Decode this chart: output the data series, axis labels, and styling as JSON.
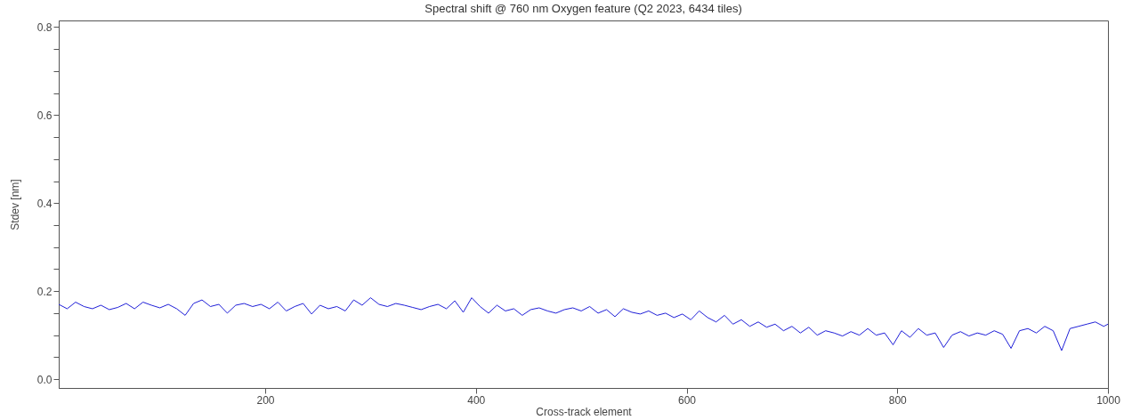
{
  "chart_data": {
    "type": "line",
    "title": "Spectral shift @ 760 nm Oxygen feature (Q2 2023, 6434 tiles)",
    "xlabel": "Cross-track element",
    "ylabel": "Stdev [nm]",
    "x": [
      4,
      12,
      20,
      28,
      36,
      44,
      52,
      60,
      68,
      76,
      84,
      92,
      100,
      108,
      116,
      124,
      132,
      140,
      148,
      156,
      164,
      172,
      180,
      188,
      196,
      204,
      212,
      220,
      228,
      236,
      244,
      252,
      260,
      268,
      276,
      284,
      292,
      300,
      308,
      316,
      324,
      332,
      340,
      348,
      356,
      364,
      372,
      380,
      388,
      396,
      404,
      412,
      420,
      428,
      436,
      444,
      452,
      460,
      468,
      476,
      484,
      492,
      500,
      508,
      516,
      524,
      532,
      540,
      548,
      556,
      564,
      572,
      580,
      588,
      596,
      604,
      612,
      620,
      628,
      636,
      644,
      652,
      660,
      668,
      676,
      684,
      692,
      700,
      708,
      716,
      724,
      732,
      740,
      748,
      756,
      764,
      772,
      780,
      788,
      796,
      804,
      812,
      820,
      828,
      836,
      844,
      852,
      860,
      868,
      876,
      884,
      892,
      900,
      908,
      916,
      924,
      932,
      940,
      948,
      956,
      964,
      972,
      980,
      988,
      996,
      1000
    ],
    "series": [
      {
        "color": "#1f1fd8",
        "values": [
          0.17,
          0.16,
          0.175,
          0.165,
          0.16,
          0.168,
          0.158,
          0.163,
          0.172,
          0.16,
          0.175,
          0.168,
          0.162,
          0.17,
          0.16,
          0.145,
          0.172,
          0.18,
          0.165,
          0.17,
          0.15,
          0.168,
          0.172,
          0.165,
          0.17,
          0.16,
          0.175,
          0.155,
          0.165,
          0.172,
          0.148,
          0.168,
          0.16,
          0.165,
          0.155,
          0.18,
          0.168,
          0.185,
          0.17,
          0.165,
          0.172,
          0.168,
          0.163,
          0.158,
          0.165,
          0.17,
          0.16,
          0.178,
          0.152,
          0.185,
          0.165,
          0.15,
          0.168,
          0.155,
          0.16,
          0.145,
          0.158,
          0.162,
          0.155,
          0.15,
          0.158,
          0.162,
          0.155,
          0.165,
          0.15,
          0.158,
          0.142,
          0.16,
          0.152,
          0.148,
          0.155,
          0.145,
          0.15,
          0.14,
          0.148,
          0.135,
          0.155,
          0.14,
          0.13,
          0.145,
          0.125,
          0.135,
          0.12,
          0.13,
          0.118,
          0.125,
          0.11,
          0.12,
          0.105,
          0.118,
          0.1,
          0.11,
          0.105,
          0.098,
          0.108,
          0.1,
          0.115,
          0.1,
          0.105,
          0.078,
          0.11,
          0.095,
          0.115,
          0.1,
          0.105,
          0.072,
          0.1,
          0.108,
          0.098,
          0.105,
          0.1,
          0.11,
          0.102,
          0.07,
          0.11,
          0.115,
          0.105,
          0.12,
          0.11,
          0.065,
          0.115,
          0.12,
          0.125,
          0.13,
          0.12,
          0.125
        ]
      }
    ],
    "xlim": [
      4,
      1000
    ],
    "xticks": [
      200,
      400,
      600,
      800,
      1000
    ],
    "ylim": [
      -0.02,
      0.815
    ],
    "yticks": [
      {
        "value": 0,
        "label": "0.0"
      },
      {
        "value": 0.05,
        "label": null
      },
      {
        "value": 0.1,
        "label": null
      },
      {
        "value": 0.15,
        "label": null
      },
      {
        "value": 0.2,
        "label": "0.2"
      },
      {
        "value": 0.25,
        "label": null
      },
      {
        "value": 0.3,
        "label": null
      },
      {
        "value": 0.35,
        "label": null
      },
      {
        "value": 0.4,
        "label": "0.4"
      },
      {
        "value": 0.45,
        "label": null
      },
      {
        "value": 0.5,
        "label": null
      },
      {
        "value": 0.55,
        "label": null
      },
      {
        "value": 0.6,
        "label": "0.6"
      },
      {
        "value": 0.65,
        "label": null
      },
      {
        "value": 0.7,
        "label": null
      },
      {
        "value": 0.75,
        "label": null
      },
      {
        "value": 0.8,
        "label": "0.8"
      }
    ],
    "grid": false,
    "legend": false
  }
}
